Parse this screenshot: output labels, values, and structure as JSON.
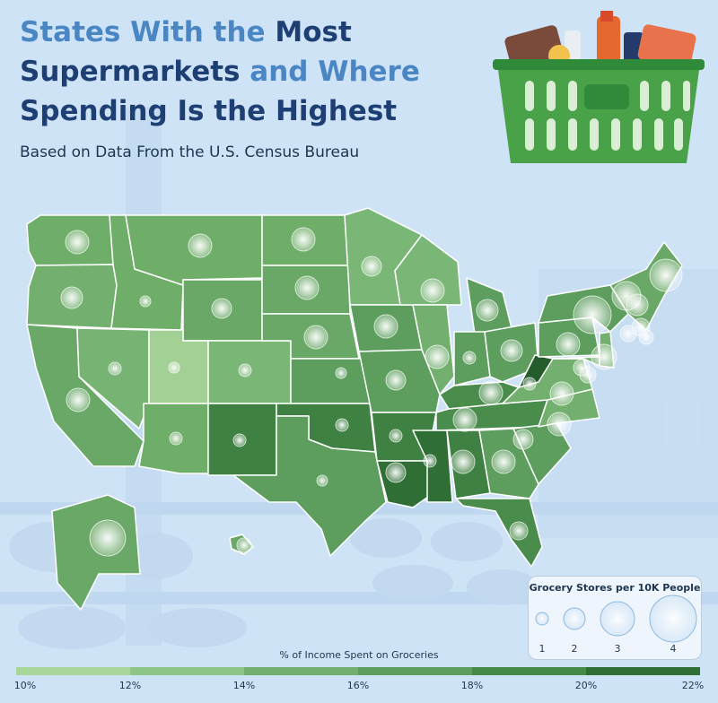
{
  "title": {
    "part1": "States With the ",
    "part2": "Most",
    "part3": "Supermarkets ",
    "part4": "and Where",
    "part5": "Spending Is the Highest"
  },
  "subtitle": "Based on Data From the U.S. Census Bureau",
  "bubble_legend": {
    "title": "Grocery Stores per 10K People",
    "items": [
      "1",
      "2",
      "3",
      "4"
    ]
  },
  "color_scale": {
    "title": "% of Income Spent on Groceries",
    "ticks": [
      "10%",
      "12%",
      "14%",
      "16%",
      "18%",
      "20%",
      "22%"
    ],
    "colors": [
      "#a9d69a",
      "#8cc585",
      "#73b070",
      "#5d9e5e",
      "#468a48",
      "#2f6e35"
    ]
  },
  "colors": {
    "title_light": "#4a86c4",
    "title_dark": "#1e3f74",
    "state_border": "#ffffff",
    "bubble": "#ffffff"
  },
  "icons": [
    "grocery-basket-icon"
  ]
}
